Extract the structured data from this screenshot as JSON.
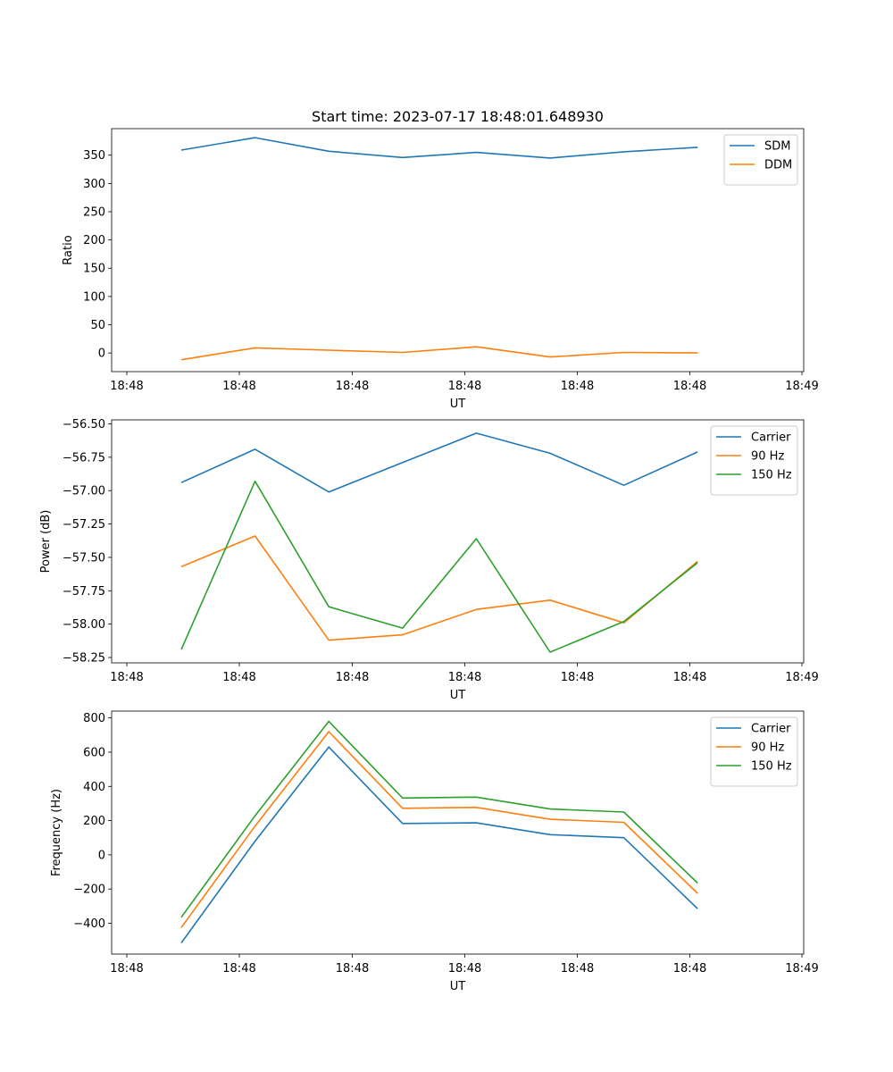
{
  "figure_title": "Start time: 2023-07-17 18:48:01.648930",
  "colors": {
    "blue": "#1f77b4",
    "orange": "#ff7f0e",
    "green": "#2ca02c"
  },
  "chart_data": [
    {
      "type": "line",
      "title": "Start time: 2023-07-17 18:48:01.648930",
      "xlabel": "UT",
      "ylabel": "Ratio",
      "xticks": [
        "18:48",
        "18:48",
        "18:48",
        "18:48",
        "18:48",
        "18:48",
        "18:49"
      ],
      "ylim": [
        -33,
        397
      ],
      "yticks": [
        0,
        50,
        100,
        150,
        200,
        250,
        300,
        350
      ],
      "ytick_labels": [
        "0",
        "50",
        "100",
        "150",
        "200",
        "250",
        "300",
        "350"
      ],
      "legend_position": "top-right",
      "x": [
        1,
        2,
        3,
        4,
        5,
        6,
        7,
        8
      ],
      "series": [
        {
          "name": "SDM",
          "color": "#1f77b4",
          "values": [
            359,
            381,
            357,
            346,
            355,
            345,
            356,
            364
          ]
        },
        {
          "name": "DDM",
          "color": "#ff7f0e",
          "values": [
            -12,
            9,
            5,
            1,
            11,
            -7,
            1,
            0
          ]
        }
      ]
    },
    {
      "type": "line",
      "xlabel": "UT",
      "ylabel": "Power (dB)",
      "xticks": [
        "18:48",
        "18:48",
        "18:48",
        "18:48",
        "18:48",
        "18:48",
        "18:49"
      ],
      "ylim": [
        -58.29,
        -56.47
      ],
      "yticks": [
        -58.25,
        -58.0,
        -57.75,
        -57.5,
        -57.25,
        -57.0,
        -56.75,
        -56.5
      ],
      "ytick_labels": [
        "−58.25",
        "−58.00",
        "−57.75",
        "−57.50",
        "−57.25",
        "−57.00",
        "−56.75",
        "−56.50"
      ],
      "legend_position": "top-right",
      "x": [
        1,
        2,
        3,
        4,
        5,
        6,
        7,
        8
      ],
      "series": [
        {
          "name": "Carrier",
          "color": "#1f77b4",
          "values": [
            -56.94,
            -56.69,
            -57.01,
            -56.79,
            -56.57,
            -56.72,
            -56.96,
            -56.71
          ]
        },
        {
          "name": "90 Hz",
          "color": "#ff7f0e",
          "values": [
            -57.57,
            -57.34,
            -58.12,
            -58.08,
            -57.89,
            -57.82,
            -57.99,
            -57.53
          ]
        },
        {
          "name": "150 Hz",
          "color": "#2ca02c",
          "values": [
            -58.19,
            -56.93,
            -57.87,
            -58.03,
            -57.36,
            -58.21,
            -57.98,
            -57.54
          ]
        }
      ]
    },
    {
      "type": "line",
      "xlabel": "UT",
      "ylabel": "Frequency (Hz)",
      "xticks": [
        "18:48",
        "18:48",
        "18:48",
        "18:48",
        "18:48",
        "18:48",
        "18:49"
      ],
      "ylim": [
        -580,
        840
      ],
      "yticks": [
        -400,
        -200,
        0,
        200,
        400,
        600,
        800
      ],
      "ytick_labels": [
        "−400",
        "−200",
        "0",
        "200",
        "400",
        "600",
        "800"
      ],
      "legend_position": "top-right",
      "x": [
        1,
        2,
        3,
        4,
        5,
        6,
        7,
        8
      ],
      "series": [
        {
          "name": "Carrier",
          "color": "#1f77b4",
          "values": [
            -515,
            80,
            630,
            183,
            187,
            118,
            100,
            -315
          ]
        },
        {
          "name": "90 Hz",
          "color": "#ff7f0e",
          "values": [
            -425,
            168,
            720,
            272,
            277,
            208,
            190,
            -225
          ]
        },
        {
          "name": "150 Hz",
          "color": "#2ca02c",
          "values": [
            -365,
            228,
            780,
            332,
            337,
            268,
            250,
            -165
          ]
        }
      ]
    }
  ]
}
